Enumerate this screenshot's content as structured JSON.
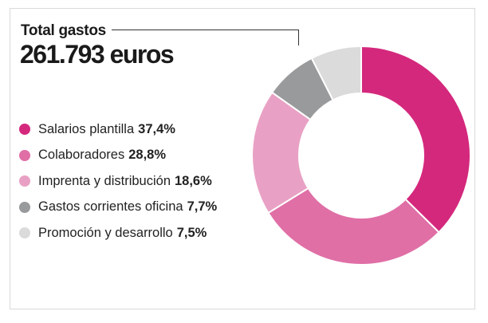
{
  "title": {
    "label": "Total gastos",
    "value": "261.793 euros"
  },
  "chart_data": {
    "type": "pie",
    "title": "Total gastos",
    "total": "261.793 euros",
    "legend_position": "left",
    "slices": [
      {
        "label": "Salarios plantilla",
        "value": 37.4,
        "display": "37,4%",
        "color": "#d4287d"
      },
      {
        "label": "Colaboradores",
        "value": 28.8,
        "display": "28,8%",
        "color": "#e06fa6"
      },
      {
        "label": "Imprenta y distribución",
        "value": 18.6,
        "display": "18,6%",
        "color": "#e8a1c4"
      },
      {
        "label": "Gastos corrientes oficina",
        "value": 7.7,
        "display": "7,7%",
        "color": "#999a9c"
      },
      {
        "label": "Promoción y desarrollo",
        "value": 7.5,
        "display": "7,5%",
        "color": "#dbdbdb"
      }
    ]
  }
}
